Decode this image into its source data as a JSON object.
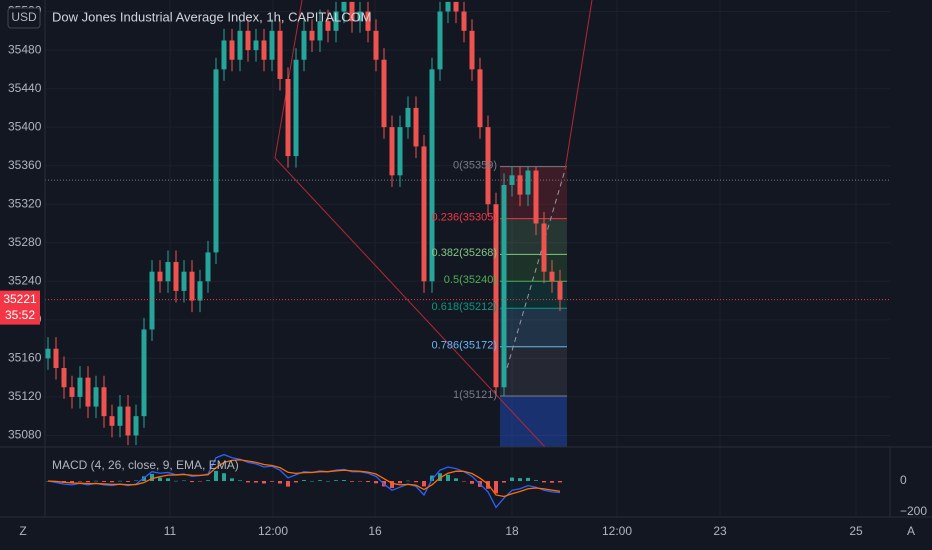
{
  "chart_data": {
    "type": "candlestick",
    "title": "Dow Jones Industrial Average Index, 1h, CAPITALCOM",
    "currency": "USD",
    "up_color": "#26a69a",
    "down_color": "#ef5350",
    "open": [
      35160,
      35170,
      35150,
      35130,
      35120,
      35140,
      35110,
      35130,
      35100,
      35090,
      35110,
      35080,
      35100,
      35190,
      35250,
      35240,
      35260,
      35230,
      35250,
      35220,
      35240,
      35270,
      35460,
      35490,
      35470,
      35500,
      35480,
      35490,
      35470,
      35500,
      35450,
      35370,
      35470,
      35500,
      35490,
      35510,
      35500,
      35520,
      35530,
      35510,
      35520,
      35500,
      35470,
      35400,
      35350,
      35400,
      35420,
      35380,
      35240,
      35460,
      35520,
      35530,
      35520,
      35500,
      35460,
      35400,
      35320,
      35130,
      35340,
      35350,
      35330,
      35355,
      35300,
      35250,
      35240
    ],
    "high": [
      35182,
      35182,
      35162,
      35142,
      35152,
      35152,
      35142,
      35142,
      35112,
      35122,
      35122,
      35112,
      35202,
      35262,
      35262,
      35272,
      35272,
      35262,
      35262,
      35252,
      35282,
      35472,
      35502,
      35502,
      35512,
      35512,
      35502,
      35502,
      35512,
      35512,
      35462,
      35482,
      35512,
      35512,
      35522,
      35522,
      35530,
      35530,
      35530,
      35530,
      35530,
      35512,
      35482,
      35412,
      35412,
      35432,
      35432,
      35392,
      35472,
      35530,
      35530,
      35530,
      35530,
      35512,
      35472,
      35412,
      35332,
      35352,
      35359,
      35359,
      35359,
      35359,
      35312,
      35262,
      35252
    ],
    "low": [
      35148,
      35138,
      35118,
      35108,
      35108,
      35098,
      35098,
      35088,
      35078,
      35078,
      35070,
      35070,
      35088,
      35178,
      35228,
      35228,
      35218,
      35218,
      35208,
      35208,
      35228,
      35258,
      35448,
      35458,
      35458,
      35468,
      35468,
      35458,
      35458,
      35438,
      35358,
      35358,
      35458,
      35478,
      35478,
      35488,
      35488,
      35508,
      35498,
      35498,
      35488,
      35458,
      35388,
      35338,
      35338,
      35388,
      35368,
      35228,
      35228,
      35448,
      35508,
      35508,
      35488,
      35448,
      35388,
      35308,
      35121,
      35121,
      35328,
      35318,
      35318,
      35288,
      35238,
      35228,
      35209
    ],
    "close": [
      35170,
      35150,
      35130,
      35120,
      35140,
      35110,
      35130,
      35100,
      35090,
      35110,
      35080,
      35100,
      35190,
      35250,
      35240,
      35260,
      35230,
      35250,
      35220,
      35240,
      35270,
      35460,
      35490,
      35470,
      35500,
      35480,
      35490,
      35470,
      35500,
      35450,
      35370,
      35470,
      35500,
      35490,
      35510,
      35500,
      35520,
      35530,
      35510,
      35520,
      35500,
      35470,
      35400,
      35350,
      35400,
      35420,
      35380,
      35240,
      35460,
      35520,
      35530,
      35520,
      35500,
      35460,
      35400,
      35320,
      35130,
      35340,
      35350,
      35330,
      35355,
      35300,
      35250,
      35240,
      35221
    ],
    "ylim": [
      35068,
      35532
    ],
    "yticks": [
      35080,
      35120,
      35160,
      35200,
      35240,
      35280,
      35320,
      35360,
      35400,
      35440,
      35480,
      35520
    ],
    "xlim": [
      -0.375,
      105.25
    ],
    "xticks": [
      {
        "value": 15.25,
        "label": "11"
      },
      {
        "value": 28.125,
        "label": "12:00"
      },
      {
        "value": 40.875,
        "label": "16"
      },
      {
        "value": 58,
        "label": "18"
      },
      {
        "value": 71.125,
        "label": "12:00"
      },
      {
        "value": 84,
        "label": "23"
      },
      {
        "value": 101,
        "label": "25"
      }
    ],
    "last_price": {
      "value": 35221,
      "label": "35221",
      "color": "#f23645"
    },
    "countdown": "35:52",
    "prev_close_line": 35345,
    "fib": {
      "levels": [
        {
          "value": 35359,
          "label": "0(35359)",
          "color": "#787b86"
        },
        {
          "value": 35305,
          "label": "0.236(35305)",
          "color": "#f23645"
        },
        {
          "value": 35268,
          "label": "0.382(35268)",
          "color": "#81c784"
        },
        {
          "value": 35240,
          "label": "0.5(35240)",
          "color": "#4caf50"
        },
        {
          "value": 35212,
          "label": "0.618(35212)",
          "color": "#089981"
        },
        {
          "value": 35172,
          "label": "0.786(35172)",
          "color": "#64b5f6"
        },
        {
          "value": 35121,
          "label": "1(35121)",
          "color": "#787b86"
        }
      ]
    },
    "macd": {
      "title": "MACD (4, 26, close, 9, EMA, EMA)",
      "macd_color": "#2962ff",
      "signal_color": "#ff6d00",
      "macd": [
        0,
        -10,
        -20,
        -25,
        -15,
        -25,
        -15,
        -25,
        -30,
        -20,
        -30,
        -20,
        20,
        60,
        50,
        55,
        40,
        45,
        30,
        35,
        45,
        150,
        170,
        150,
        140,
        120,
        110,
        90,
        95,
        70,
        20,
        40,
        60,
        55,
        65,
        60,
        70,
        75,
        60,
        60,
        50,
        30,
        -20,
        -60,
        -40,
        -20,
        -35,
        -90,
        10,
        70,
        90,
        80,
        60,
        30,
        -20,
        -70,
        -170,
        -110,
        -60,
        -50,
        -30,
        -40,
        -60,
        -70,
        -75
      ],
      "signal": [
        0,
        -3,
        -8,
        -13,
        -14,
        -17,
        -16,
        -19,
        -22,
        -21,
        -24,
        -23,
        -10,
        15,
        28,
        38,
        39,
        42,
        37,
        36,
        40,
        85,
        120,
        133,
        136,
        129,
        120,
        106,
        100,
        86,
        56,
        49,
        54,
        55,
        60,
        60,
        65,
        69,
        65,
        63,
        57,
        45,
        15,
        -15,
        -25,
        -22,
        -27,
        -55,
        -25,
        20,
        50,
        63,
        62,
        48,
        18,
        -20,
        -90,
        -100,
        -82,
        -68,
        -50,
        -45,
        -51,
        -59,
        -66
      ],
      "histogram": [
        0,
        -7,
        -12,
        -12,
        -1,
        -8,
        1,
        -6,
        -8,
        1,
        -6,
        3,
        30,
        45,
        22,
        17,
        1,
        3,
        -7,
        -1,
        5,
        65,
        50,
        17,
        4,
        -9,
        -10,
        -16,
        -5,
        -16,
        -36,
        -9,
        6,
        0,
        5,
        0,
        5,
        6,
        -5,
        -3,
        -7,
        -15,
        -35,
        -45,
        -15,
        2,
        -8,
        -35,
        35,
        50,
        40,
        17,
        -2,
        -18,
        -38,
        -50,
        -80,
        -10,
        22,
        18,
        20,
        5,
        -9,
        -11,
        -9
      ],
      "ylim": [
        -232,
        219
      ],
      "yticks": [
        0,
        {
          "value": -200,
          "label": "−200"
        }
      ]
    },
    "buttons": {
      "left": "Z",
      "right": "A"
    }
  }
}
